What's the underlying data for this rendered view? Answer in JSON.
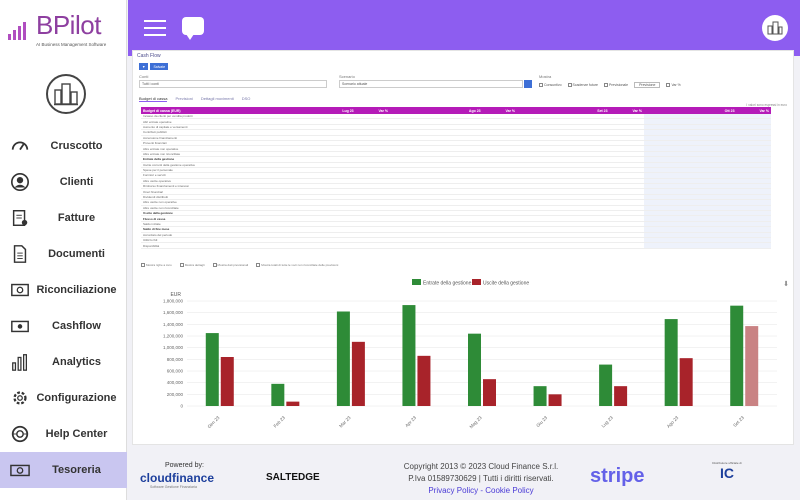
{
  "brand": {
    "name": "BPilot",
    "tagline": "AI Business Management Software"
  },
  "sidebar": {
    "items": [
      {
        "label": "Cruscotto",
        "icon": "speedometer-icon"
      },
      {
        "label": "Clienti",
        "icon": "user-icon"
      },
      {
        "label": "Fatture",
        "icon": "invoice-icon"
      },
      {
        "label": "Documenti",
        "icon": "document-icon"
      },
      {
        "label": "Riconciliazione",
        "icon": "cash-icon"
      },
      {
        "label": "Cashflow",
        "icon": "banknote-icon"
      },
      {
        "label": "Analytics",
        "icon": "bar-chart-icon"
      },
      {
        "label": "Configurazione",
        "icon": "gear-icon"
      },
      {
        "label": "Help Center",
        "icon": "lifebuoy-icon"
      },
      {
        "label": "Tesoreria",
        "icon": "money-icon",
        "active": true
      }
    ]
  },
  "panel": {
    "title": "Cash Flow",
    "buttons": [
      "▼",
      "Salvate"
    ],
    "labels": {
      "conti": "Conti",
      "scenario": "Scenario",
      "mostra": "Mostra"
    },
    "conti_value": "Tutti i conti",
    "scenario_value": "Scenario attuale",
    "options": [
      "Consuntivo",
      "Scadenze future",
      "Previsionale",
      "Previsione",
      "Var %"
    ],
    "tabs": [
      "Budget di cassa",
      "Previsioni",
      "Dettagli movimenti",
      "DSO"
    ],
    "note": "I valori sono espressi in euro"
  },
  "table": {
    "header": [
      "Budget di cassa (EUR)",
      "Lug 23",
      "Var %",
      "Ago 23",
      "Var %",
      "Set 23",
      "Var %",
      "Ott 23",
      "Var %"
    ],
    "rows": [
      {
        "label": "Incasso da clienti per vendita prodotti",
        "bold": false
      },
      {
        "label": "Altri entrate operative",
        "bold": false
      },
      {
        "label": "Aumento di capitale e versamenti",
        "bold": false
      },
      {
        "label": "Contributi pubblici",
        "bold": false
      },
      {
        "label": "Accensione finanziamenti",
        "bold": false
      },
      {
        "label": "Proventi finanziari",
        "bold": false
      },
      {
        "label": "Altre entrate non operative",
        "bold": false
      },
      {
        "label": "Altre entrate non riconciliate",
        "bold": false
      },
      {
        "label": "Entrate della gestione",
        "bold": true
      },
      {
        "label": "Uscite correnti della gestione operativa",
        "bold": false
      },
      {
        "label": "Spese per il personale",
        "bold": false
      },
      {
        "label": "Fornitori e servizi",
        "bold": false
      },
      {
        "label": "Altre uscite operative",
        "bold": false
      },
      {
        "label": "Rimborso finanziamenti e interessi",
        "bold": false
      },
      {
        "label": "Oneri finanziari",
        "bold": false
      },
      {
        "label": "Dividendi distribuiti",
        "bold": false
      },
      {
        "label": "Altre uscite non operative",
        "bold": false
      },
      {
        "label": "Altre uscite non riconciliate",
        "bold": false
      },
      {
        "label": "Uscite della gestione",
        "bold": true
      },
      {
        "label": "Flusso di cassa",
        "bold": true
      },
      {
        "label": "Saldo iniziale",
        "bold": false
      },
      {
        "label": "Saldo di fine mese",
        "bold": true
      },
      {
        "label": "Accordato del periodo",
        "bold": false
      },
      {
        "label": "Utilizzo fidi",
        "bold": false
      },
      {
        "label": "Disponibilità",
        "bold": false
      }
    ]
  },
  "legend_options": [
    "Mostra righe a zero",
    "Mostra dettagli",
    "Mostra dati previsionali",
    "Mostra totali di tutte le voci non riconciliate delle previsioni"
  ],
  "chart_data": {
    "type": "bar",
    "ylabel": "EUR",
    "ylim": [
      0,
      1800000
    ],
    "yticks": [
      "0",
      "200,000",
      "400,000",
      "600,000",
      "800,000",
      "1,000,000",
      "1,200,000",
      "1,400,000",
      "1,600,000",
      "1,800,000"
    ],
    "categories": [
      "Gen 23",
      "Feb 23",
      "Mar 23",
      "Apr 23",
      "Mag 23",
      "Giu 23",
      "Lug 23",
      "Ago 23",
      "Set 23"
    ],
    "series": [
      {
        "name": "Entrate della gestione",
        "color": "#2e8b37",
        "values": [
          1250000,
          380000,
          1620000,
          1730000,
          1240000,
          340000,
          710000,
          1490000,
          1720000
        ]
      },
      {
        "name": "Uscite della gestione",
        "color": "#a8232a",
        "values": [
          840000,
          75000,
          1100000,
          860000,
          460000,
          200000,
          340000,
          820000,
          1370000
        ]
      }
    ],
    "legend_position": "top-center"
  },
  "footer": {
    "powered_by": "Powered by:",
    "cloud_finance": "cloudfinance",
    "cloud_finance_sub": "Software Gestione Finanziaria",
    "saltedge": "SALTEDGE",
    "copyright": "Copyright 2013 © 2023 Cloud Finance S.r.l.",
    "vat": "P.Iva 01589730629 | Tutti i diritti riservati.",
    "links": "Privacy Policy - Cookie Policy",
    "stripe": "stripe",
    "ic_top": "Distributore ufficiale di",
    "ic": "IC"
  }
}
